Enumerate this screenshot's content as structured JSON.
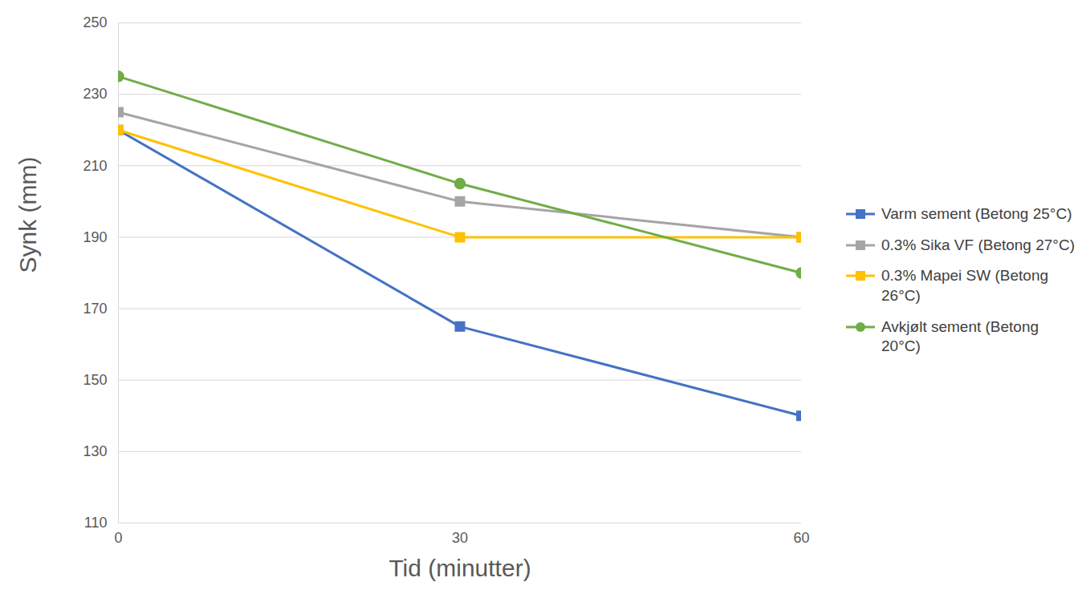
{
  "chart_data": {
    "type": "line",
    "x_label": "Tid (minutter)",
    "y_label": "Synk (mm)",
    "x": [
      0,
      30,
      60
    ],
    "xlim": [
      0,
      60
    ],
    "xticks": [
      0,
      30,
      60
    ],
    "ylim": [
      110,
      250
    ],
    "yticks": [
      110,
      130,
      150,
      170,
      190,
      210,
      230,
      250
    ],
    "grid": true,
    "legend": "right",
    "series": [
      {
        "name": "Varm sement (Betong 25°C)",
        "color": "#4472c4",
        "marker": "square",
        "values": [
          220,
          165,
          140
        ]
      },
      {
        "name": "0.3% Sika VF (Betong 27°C)",
        "color": "#a5a5a5",
        "marker": "square",
        "values": [
          225,
          200,
          190
        ]
      },
      {
        "name": "0.3% Mapei SW (Betong 26°C)",
        "color": "#ffc000",
        "marker": "square",
        "values": [
          220,
          190,
          190
        ]
      },
      {
        "name": "Avkjølt sement (Betong 20°C)",
        "color": "#70ad47",
        "marker": "circle",
        "values": [
          235,
          205,
          180
        ]
      }
    ]
  }
}
